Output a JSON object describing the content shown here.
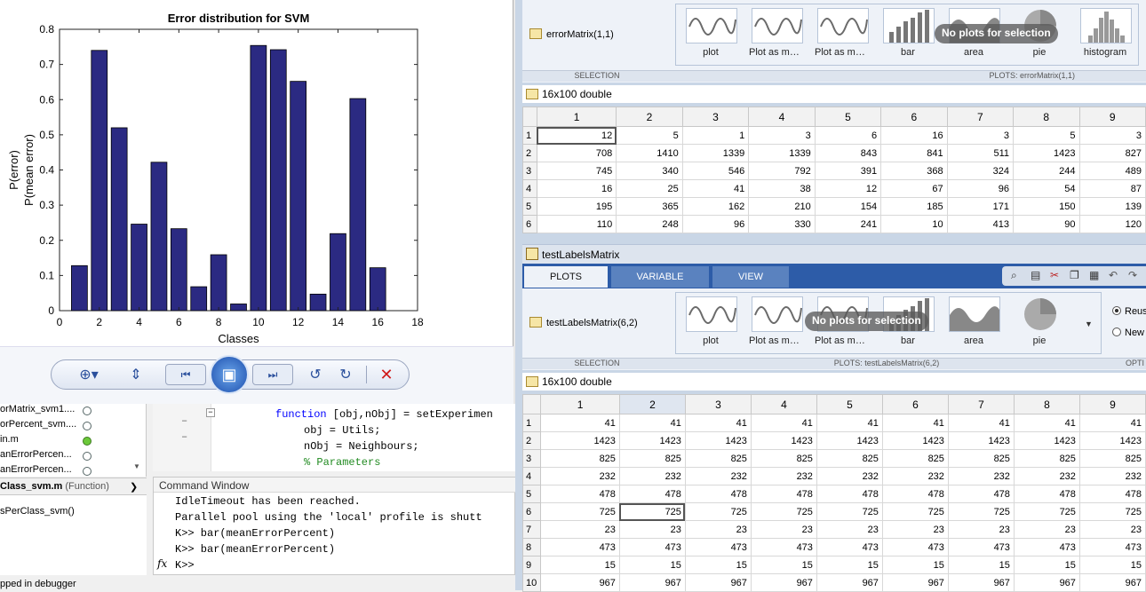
{
  "figure": {
    "chart_data": {
      "type": "bar",
      "title": "Error distribution for SVM",
      "xlabel": "Classes",
      "ylabel_lines": [
        "P(error)",
        "P(mean error)"
      ],
      "xlim": [
        0,
        18
      ],
      "ylim": [
        0,
        0.8
      ],
      "xticks": [
        "0",
        "2",
        "4",
        "6",
        "8",
        "10",
        "12",
        "14",
        "16",
        "18"
      ],
      "yticks": [
        "0",
        "0.1",
        "0.2",
        "0.3",
        "0.4",
        "0.5",
        "0.6",
        "0.7",
        "0.8"
      ],
      "x": [
        1,
        2,
        3,
        4,
        5,
        6,
        7,
        8,
        9,
        10,
        11,
        12,
        13,
        14,
        15,
        16
      ],
      "values": [
        0.128,
        0.74,
        0.52,
        0.246,
        0.422,
        0.233,
        0.068,
        0.159,
        0.019,
        0.754,
        0.742,
        0.652,
        0.047,
        0.219,
        0.603,
        0.122
      ],
      "bar_color": "#2b2a82"
    }
  },
  "current_folder": {
    "items": [
      {
        "name": "orMatrix_svm1....",
        "status": "none"
      },
      {
        "name": "orPercent_svm....",
        "status": "none"
      },
      {
        "name": "in.m",
        "status": "green"
      },
      {
        "name": "anErrorPercen...",
        "status": "none"
      },
      {
        "name": "anErrorPercen...",
        "status": "none"
      }
    ]
  },
  "details": {
    "header": "Class_svm.m",
    "header_suffix": "(Function)",
    "item": "sPerClass_svm()"
  },
  "editor": {
    "lines": [
      {
        "keyword": "function",
        "code": " [obj,nObj] = setExperimen"
      },
      {
        "keyword": "",
        "code": "obj = Utils;"
      },
      {
        "keyword": "",
        "code": "nObj = Neighbours;"
      },
      {
        "keyword": "",
        "comment": "% Parameters"
      }
    ]
  },
  "command_window": {
    "title": "Command Window",
    "lines": [
      "IdleTimeout has been reached.",
      "Parallel pool using the 'local' profile is shutt",
      "K>> bar(meanErrorPercent)",
      "K>> bar(meanErrorPercent)",
      "K>> "
    ],
    "fx": "fx"
  },
  "status_bar": {
    "text": "pped in debugger"
  },
  "top_panel": {
    "selection_var": "errorMatrix(1,1)",
    "section_left": "SELECTION",
    "section_right": "PLOTS: errorMatrix(1,1)",
    "no_plots": "No plots for selection",
    "gallery": [
      "plot",
      "Plot as mult...",
      "Plot as mult...",
      "bar",
      "area",
      "pie",
      "histogram"
    ],
    "var_info": "16x100 double",
    "columns": [
      "1",
      "2",
      "3",
      "4",
      "5",
      "6",
      "7",
      "8",
      "9"
    ],
    "rows": [
      [
        "12",
        "5",
        "1",
        "3",
        "6",
        "16",
        "3",
        "5",
        "3"
      ],
      [
        "708",
        "1410",
        "1339",
        "1339",
        "843",
        "841",
        "511",
        "1423",
        "827"
      ],
      [
        "745",
        "340",
        "546",
        "792",
        "391",
        "368",
        "324",
        "244",
        "489"
      ],
      [
        "16",
        "25",
        "41",
        "38",
        "12",
        "67",
        "96",
        "54",
        "87"
      ],
      [
        "195",
        "365",
        "162",
        "210",
        "154",
        "185",
        "171",
        "150",
        "139"
      ],
      [
        "110",
        "248",
        "96",
        "330",
        "241",
        "10",
        "413",
        "90",
        "120"
      ]
    ]
  },
  "bottom_panel": {
    "title": "testLabelsMatrix",
    "tabs": [
      "PLOTS",
      "VARIABLE",
      "VIEW"
    ],
    "selection_var": "testLabelsMatrix(6,2)",
    "section_left": "SELECTION",
    "section_right": "PLOTS: testLabelsMatrix(6,2)",
    "section_opt": "OPTI",
    "no_plots": "No plots for selection",
    "gallery": [
      "plot",
      "Plot as mult...",
      "Plot as mult...",
      "bar",
      "area",
      "pie"
    ],
    "radio1": "Reus",
    "radio2": "New",
    "var_info": "16x100 double",
    "columns": [
      "1",
      "2",
      "3",
      "4",
      "5",
      "6",
      "7",
      "8",
      "9"
    ],
    "rows": [
      [
        "41",
        "41",
        "41",
        "41",
        "41",
        "41",
        "41",
        "41",
        "41"
      ],
      [
        "1423",
        "1423",
        "1423",
        "1423",
        "1423",
        "1423",
        "1423",
        "1423",
        "1423"
      ],
      [
        "825",
        "825",
        "825",
        "825",
        "825",
        "825",
        "825",
        "825",
        "825"
      ],
      [
        "232",
        "232",
        "232",
        "232",
        "232",
        "232",
        "232",
        "232",
        "232"
      ],
      [
        "478",
        "478",
        "478",
        "478",
        "478",
        "478",
        "478",
        "478",
        "478"
      ],
      [
        "725",
        "725",
        "725",
        "725",
        "725",
        "725",
        "725",
        "725",
        "725"
      ],
      [
        "23",
        "23",
        "23",
        "23",
        "23",
        "23",
        "23",
        "23",
        "23"
      ],
      [
        "473",
        "473",
        "473",
        "473",
        "473",
        "473",
        "473",
        "473",
        "473"
      ],
      [
        "15",
        "15",
        "15",
        "15",
        "15",
        "15",
        "15",
        "15",
        "15"
      ],
      [
        "967",
        "967",
        "967",
        "967",
        "967",
        "967",
        "967",
        "967",
        "967"
      ]
    ]
  }
}
